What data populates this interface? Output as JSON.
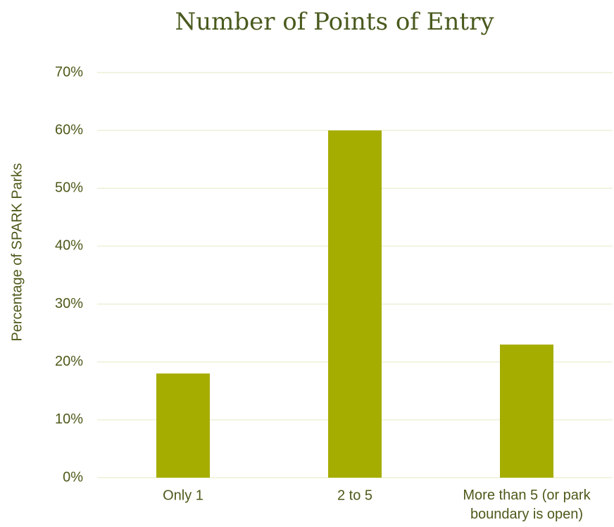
{
  "chart_data": {
    "type": "bar",
    "title": "Number of Points of Entry",
    "y_label": "Percentage of SPARK Parks",
    "categories": [
      "Only 1",
      "2 to 5",
      "More than 5 (or park boundary is open)"
    ],
    "values": [
      18,
      60,
      23
    ],
    "color": "#a5ad00",
    "ylim": [
      0,
      70
    ],
    "yticks": [
      {
        "value": 0,
        "label": "0%"
      },
      {
        "value": 10,
        "label": "10%"
      },
      {
        "value": 20,
        "label": "20%"
      },
      {
        "value": 30,
        "label": "30%"
      },
      {
        "value": 40,
        "label": "40%"
      },
      {
        "value": 50,
        "label": "50%"
      },
      {
        "value": 60,
        "label": "60%"
      },
      {
        "value": 70,
        "label": "70%"
      }
    ],
    "grid": true
  }
}
